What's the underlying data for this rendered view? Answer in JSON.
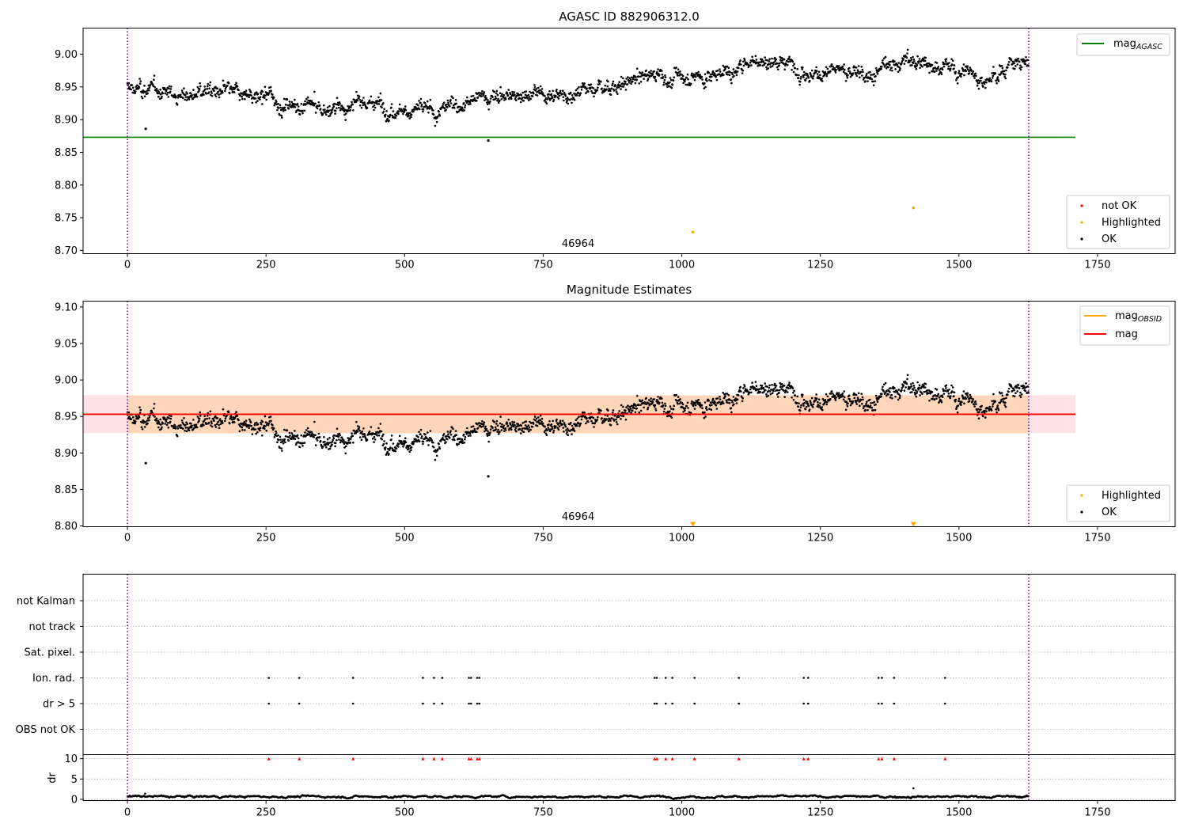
{
  "chart_data": [
    {
      "type": "scatter",
      "title": "AGASC ID 882906312.0",
      "xlim": [
        -80,
        1890
      ],
      "ylim": [
        8.695,
        9.04
      ],
      "xticks": [
        0,
        250,
        500,
        750,
        1000,
        1250,
        1500,
        1750
      ],
      "yticks": [
        8.7,
        8.75,
        8.8,
        8.85,
        8.9,
        8.95,
        9.0
      ],
      "ytick_labels": [
        "8.70",
        "8.75",
        "8.80",
        "8.85",
        "8.90",
        "8.95",
        "9.00"
      ],
      "vlines": [
        0,
        1626
      ],
      "hline": {
        "y": 8.873,
        "xmin": -80,
        "xmax": 1710,
        "color": "#008000",
        "name": "mag_AGASC"
      },
      "obsid_label": {
        "text": "46964",
        "x": 813
      },
      "trend": [
        [
          0,
          8.948
        ],
        [
          100,
          8.938
        ],
        [
          150,
          8.944
        ],
        [
          250,
          8.93
        ],
        [
          350,
          8.915
        ],
        [
          450,
          8.925
        ],
        [
          550,
          8.913
        ],
        [
          650,
          8.935
        ],
        [
          750,
          8.94
        ],
        [
          850,
          8.948
        ],
        [
          950,
          8.968
        ],
        [
          1050,
          8.966
        ],
        [
          1130,
          8.99
        ],
        [
          1200,
          8.99
        ],
        [
          1250,
          8.972
        ],
        [
          1300,
          8.975
        ],
        [
          1350,
          8.972
        ],
        [
          1400,
          8.992
        ],
        [
          1450,
          8.985
        ],
        [
          1500,
          8.972
        ],
        [
          1570,
          8.968
        ],
        [
          1600,
          8.995
        ],
        [
          1626,
          8.988
        ]
      ],
      "outliers": [
        [
          33,
          8.886
        ],
        [
          651,
          8.868
        ]
      ],
      "highlighted": [
        [
          1020,
          8.728
        ],
        [
          1418,
          8.765
        ]
      ],
      "legend_lines": [
        {
          "label": "mag",
          "sub": "AGASC",
          "color": "#008000"
        }
      ],
      "legend_points": [
        {
          "label": "not OK",
          "color": "#ff0000"
        },
        {
          "label": "Highlighted",
          "color": "#ffa500"
        },
        {
          "label": "OK",
          "color": "#000000"
        }
      ]
    },
    {
      "type": "scatter",
      "title": "Magnitude Estimates",
      "xlim": [
        -80,
        1890
      ],
      "ylim": [
        8.799,
        9.108
      ],
      "xticks": [
        0,
        250,
        500,
        750,
        1000,
        1250,
        1500,
        1750
      ],
      "yticks": [
        8.8,
        8.85,
        8.9,
        8.95,
        9.0,
        9.05,
        9.1
      ],
      "ytick_labels": [
        "8.80",
        "8.85",
        "8.90",
        "8.95",
        "9.00",
        "9.05",
        "9.10"
      ],
      "vlines": [
        0,
        1626
      ],
      "mag_line": {
        "y": 8.953,
        "xmin": -80,
        "xmax": 1710,
        "color": "#ff0000"
      },
      "mag_band": {
        "ylow": 8.927,
        "yhigh": 8.979,
        "xmin": -80,
        "xmax": 1710
      },
      "obsid_band": {
        "ylow": 8.927,
        "yhigh": 8.979,
        "xmin": 0,
        "xmax": 1626
      },
      "obsid_label": {
        "text": "46964",
        "x": 813
      },
      "outliers": [
        [
          33,
          8.886
        ],
        [
          651,
          8.868
        ]
      ],
      "highlighted_markers": [
        1020,
        1418
      ],
      "legend_lines": [
        {
          "label": "mag",
          "sub": "OBSID",
          "color": "#ffa500"
        },
        {
          "label": "mag",
          "sub": "",
          "color": "#ff0000"
        }
      ],
      "legend_points": [
        {
          "label": "Highlighted",
          "color": "#ffa500"
        },
        {
          "label": "OK",
          "color": "#000000"
        }
      ]
    },
    {
      "type": "scatter",
      "title": "",
      "xlim": [
        -80,
        1890
      ],
      "xticks": [
        0,
        250,
        500,
        750,
        1000,
        1250,
        1500,
        1750
      ],
      "vlines": [
        0,
        1626
      ],
      "flag_rows": [
        "not Kalman",
        "not track",
        "Sat. pixel.",
        "Ion. rad.",
        "dr > 5",
        "OBS not OK"
      ],
      "flag_x": [
        255,
        310,
        407,
        533,
        553,
        568,
        616,
        620,
        631,
        635,
        951,
        955,
        971,
        983,
        1023,
        1103,
        1220,
        1228,
        1355,
        1361,
        1383,
        1475
      ],
      "dr_ylim": [
        -0.3,
        11
      ],
      "dr_yticks": [
        0,
        5,
        10
      ],
      "dr_label": "dr",
      "dr_high_x": [
        255,
        310,
        407,
        533,
        553,
        568,
        616,
        620,
        631,
        635,
        951,
        955,
        971,
        983,
        1023,
        1103,
        1220,
        1228,
        1355,
        1361,
        1383,
        1475
      ],
      "dr_outliers": [
        [
          1418,
          2.7
        ],
        [
          32,
          1.4
        ]
      ]
    }
  ],
  "colors": {
    "ok": "#000000",
    "not_ok": "#ff0000",
    "highlighted": "#ffa500",
    "vline": "#800080",
    "grid": "#b0b0b0"
  }
}
